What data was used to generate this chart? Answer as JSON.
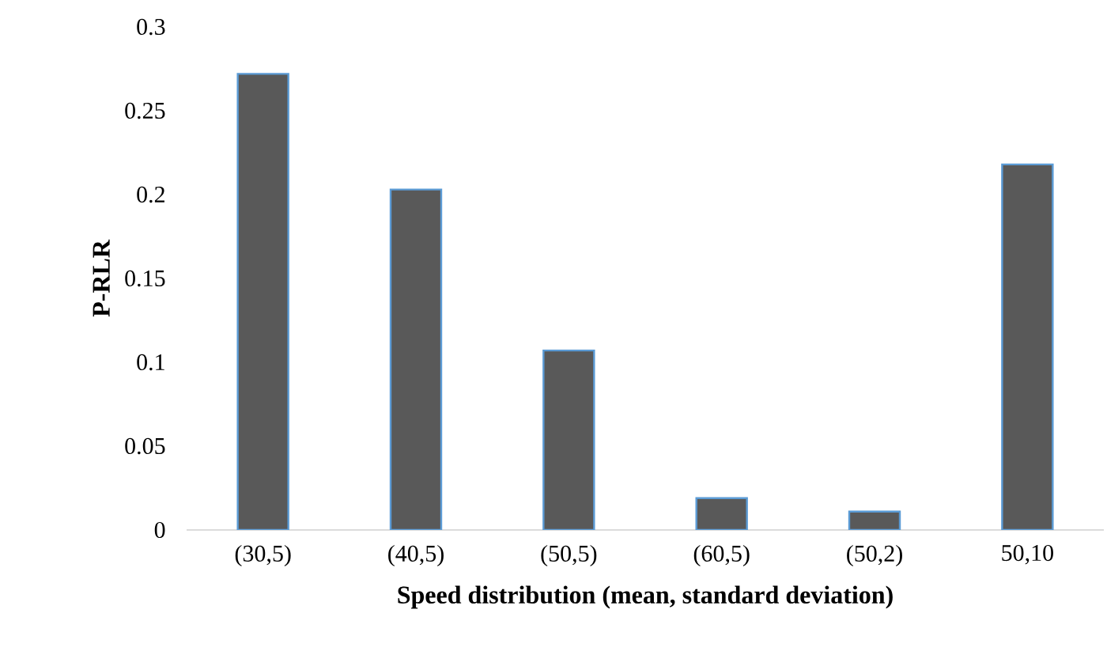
{
  "chart_data": {
    "type": "bar",
    "xlabel": "Speed distribution (mean, standard deviation)",
    "ylabel": "P-RLR",
    "categories": [
      "(30,5)",
      "(40,5)",
      "(50,5)",
      "(60,5)",
      "(50,2)",
      "50,10"
    ],
    "values": [
      0.272,
      0.203,
      0.107,
      0.019,
      0.011,
      0.218
    ],
    "color": "#595959",
    "ylim": [
      0,
      0.3
    ],
    "yticks": [
      0,
      0.05,
      0.1,
      0.15,
      0.2,
      0.25,
      0.3
    ]
  }
}
